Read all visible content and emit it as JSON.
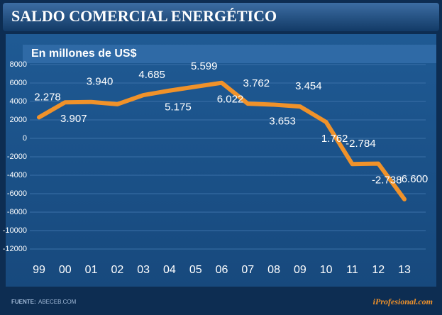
{
  "chart_data": {
    "type": "line",
    "title": "SALDO COMERCIAL ENERGÉTICO",
    "subtitle": "En millones de US$",
    "source_label": "FUENTE:",
    "source": "ABECEB.COM",
    "brand": "iProfesional.com",
    "categories": [
      "99",
      "00",
      "01",
      "02",
      "03",
      "04",
      "05",
      "06",
      "07",
      "08",
      "09",
      "10",
      "11",
      "12",
      "13"
    ],
    "values": [
      2278,
      3907,
      3940,
      3700,
      4685,
      5175,
      5599,
      6022,
      3762,
      3653,
      3454,
      1762,
      -2784,
      -2738,
      -6600
    ],
    "value_labels": [
      "2.278",
      "3.907",
      "3.940",
      null,
      "4.685",
      "5.175",
      "5.599",
      "6.022",
      "3.762",
      "3.653",
      "3.454",
      "1.762",
      "-2.784",
      "-2.738",
      "-6.600"
    ],
    "color": "#f0922a",
    "ylim": [
      -14000,
      8000
    ],
    "yticks": [
      8000,
      6000,
      4000,
      2000,
      0,
      -2000,
      -4000,
      -6000,
      -8000,
      -10000,
      -12000
    ],
    "grid": true
  }
}
